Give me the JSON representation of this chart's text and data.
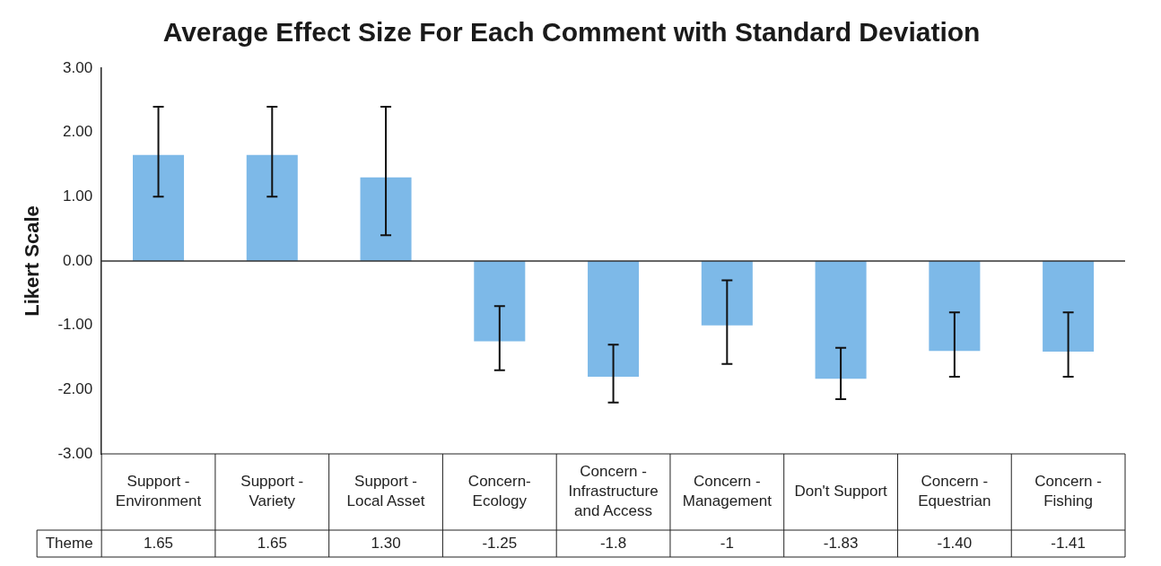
{
  "chart_data": {
    "type": "bar",
    "title": "Average Effect Size For Each Comment with Standard Deviation",
    "ylabel": "Likert Scale",
    "categories": [
      "Support - Environment",
      "Support - Variety",
      "Support - Local Asset",
      "Concern- Ecology",
      "Concern - Infrastructure and Access",
      "Concern - Management",
      "Don't Support",
      "Concern - Equestrian",
      "Concern - Fishing"
    ],
    "series": [
      {
        "name": "Theme",
        "color": "#7db9e8",
        "values": [
          1.65,
          1.65,
          1.3,
          -1.25,
          -1.8,
          -1,
          -1.83,
          -1.4,
          -1.41
        ],
        "value_labels": [
          "1.65",
          "1.65",
          "1.30",
          "-1.25",
          "-1.8",
          "-1",
          "-1.83",
          "-1.40",
          "-1.41"
        ],
        "errors": [
          [
            1.0,
            2.4
          ],
          [
            1.0,
            2.4
          ],
          [
            0.4,
            2.4
          ],
          [
            -1.7,
            -0.7
          ],
          [
            -2.2,
            -1.3
          ],
          [
            -1.6,
            -0.3
          ],
          [
            -2.15,
            -1.35
          ],
          [
            -1.8,
            -0.8
          ],
          [
            -1.8,
            -0.8
          ]
        ]
      }
    ],
    "ylim": [
      -3,
      3
    ],
    "yticks": [
      {
        "value": -3,
        "label": "-3.00"
      },
      {
        "value": -2,
        "label": "-2.00"
      },
      {
        "value": -1,
        "label": "-1.00"
      },
      {
        "value": 0,
        "label": "0.00"
      },
      {
        "value": 1,
        "label": "1.00"
      },
      {
        "value": 2,
        "label": "2.00"
      },
      {
        "value": 3,
        "label": "3.00"
      }
    ],
    "ref_lines": [
      {
        "axis": "y",
        "value": 0,
        "color": "#333333"
      }
    ],
    "grid": false,
    "legend": false
  }
}
